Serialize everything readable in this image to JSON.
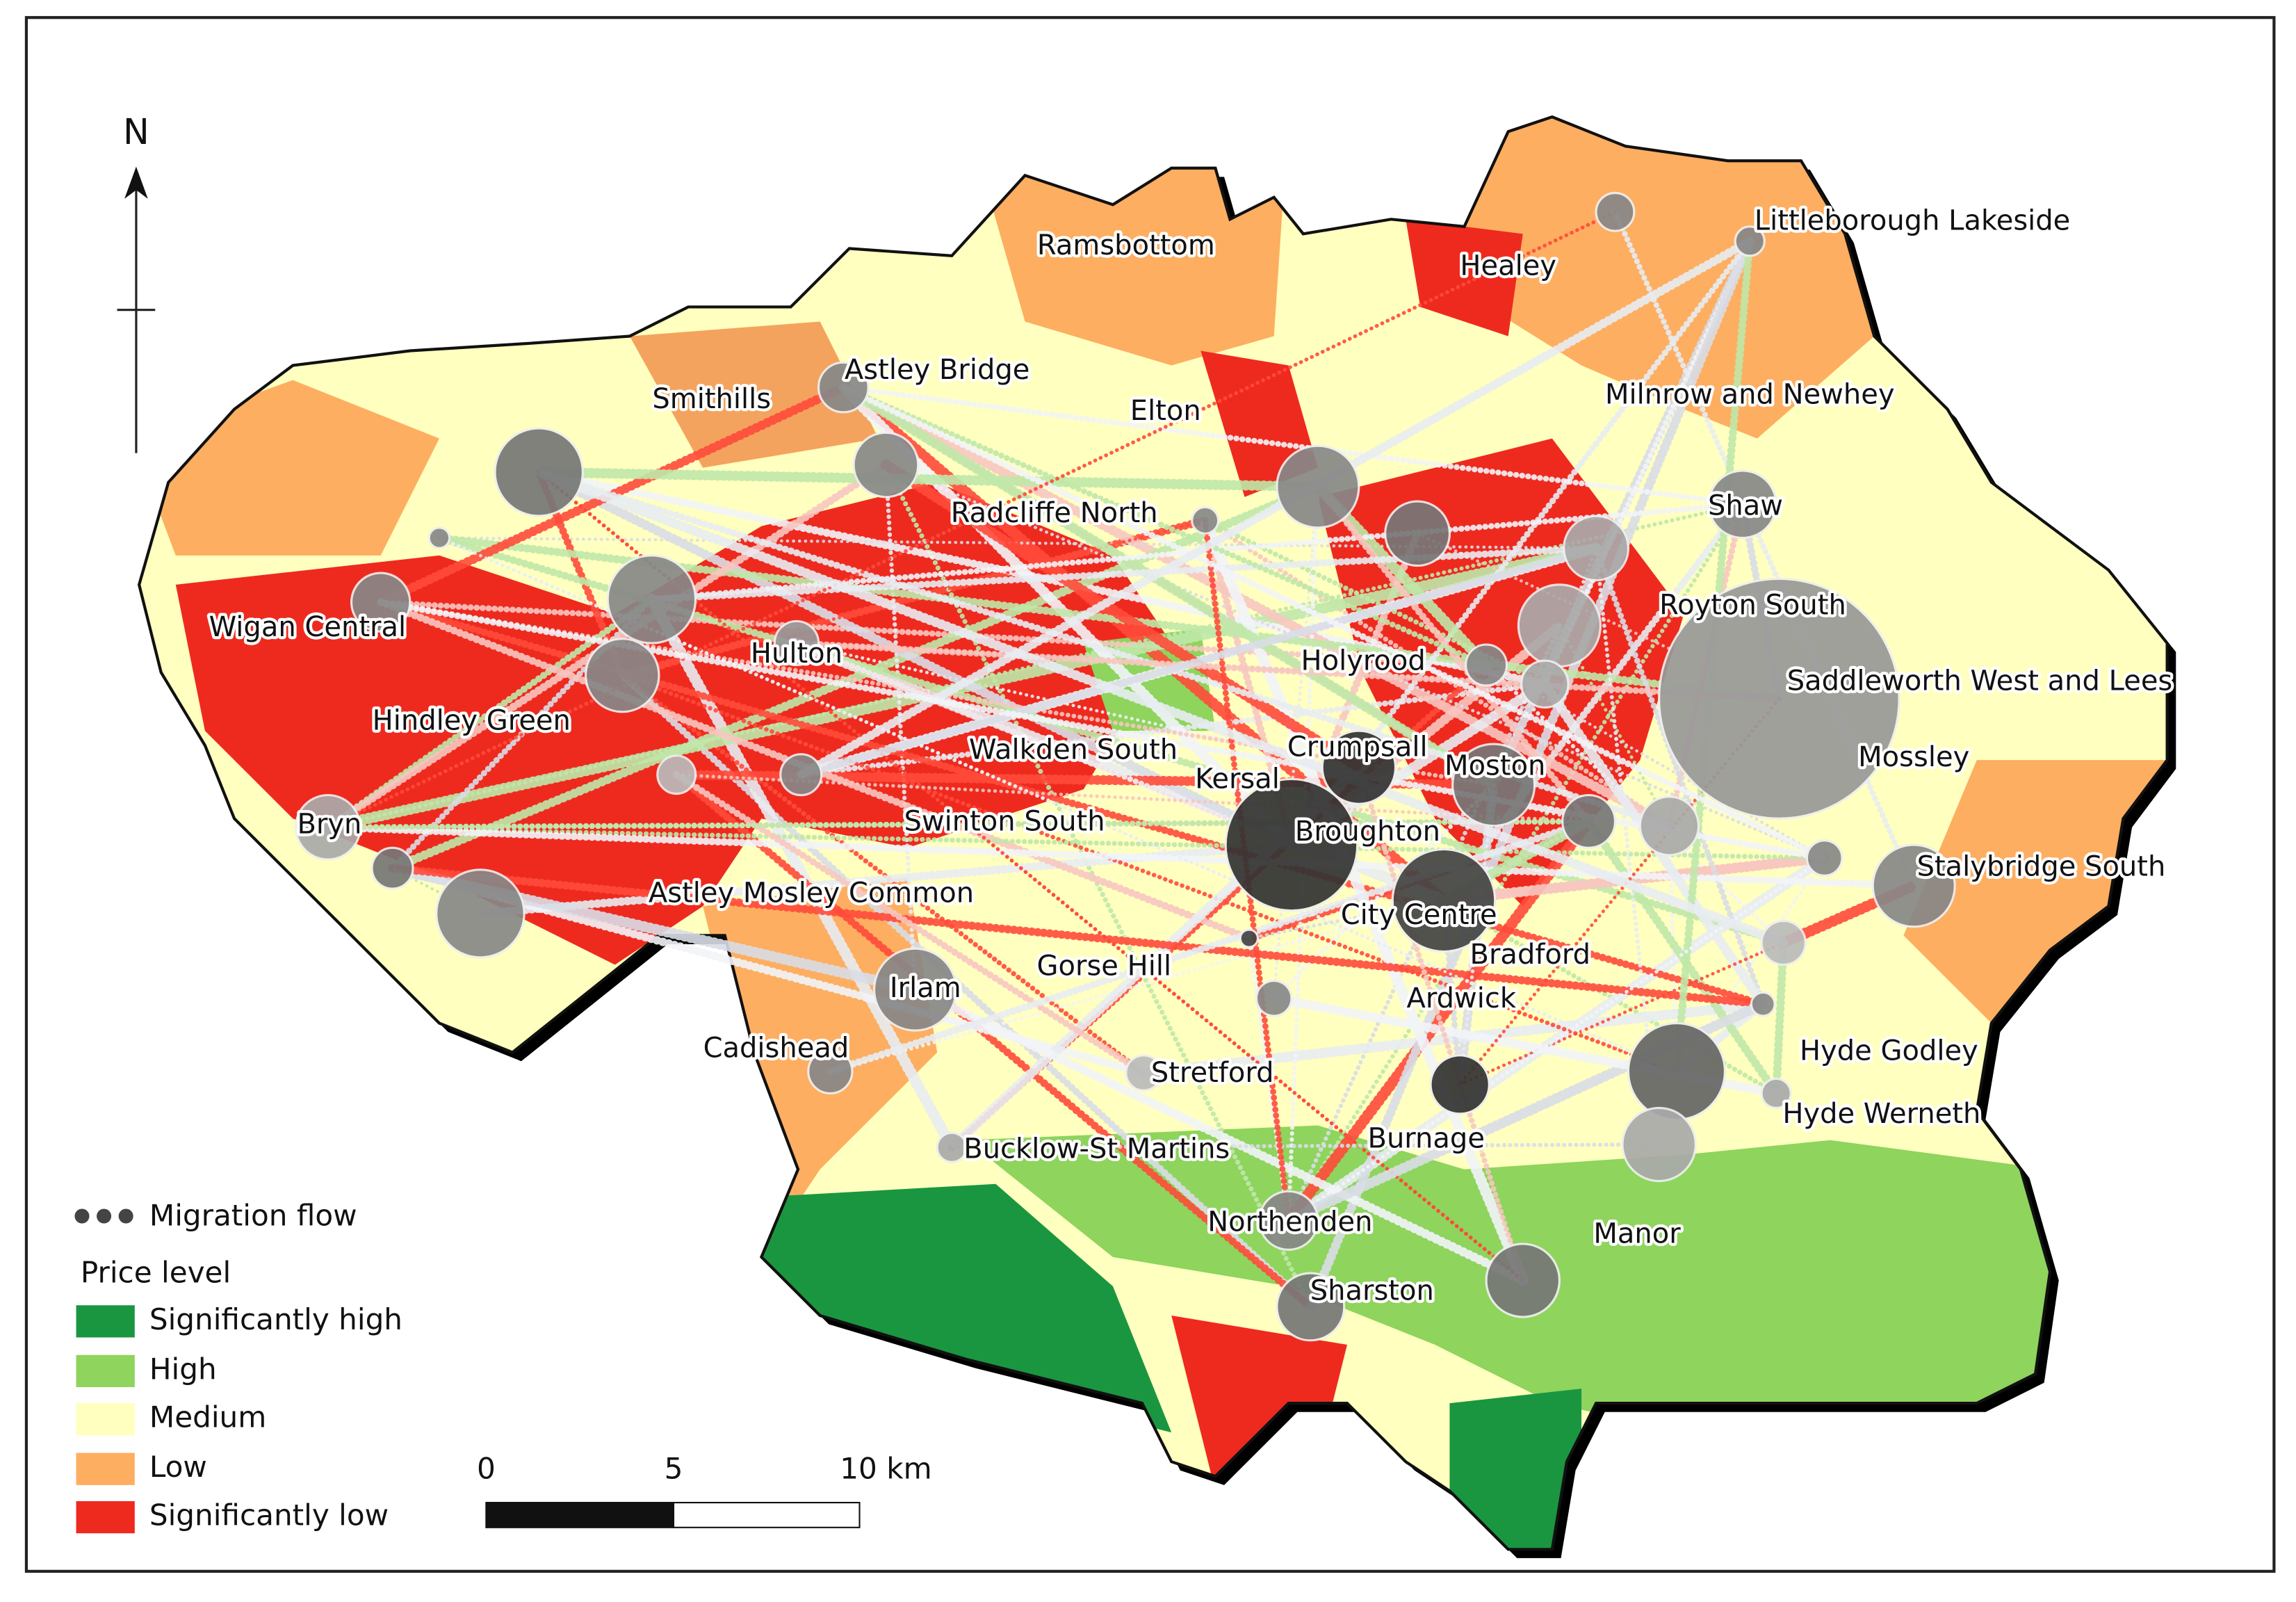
{
  "north": "N",
  "places": [
    "Ramsbottom",
    "Healey",
    "Littleborough Lakeside",
    "Astley Bridge",
    "Smithills",
    "Elton",
    "Milnrow and Newhey",
    "Radcliffe North",
    "Shaw",
    "Royton South",
    "Wigan Central",
    "Hulton",
    "Holyrood",
    "Saddleworth West and Lees",
    "Hindley Green",
    "Walkden South",
    "Crumpsall",
    "Kersal",
    "Moston",
    "Mossley",
    "Bryn",
    "Swinton South",
    "Broughton",
    "Stalybridge South",
    "Astley Mosley Common",
    "City Centre",
    "Bradford",
    "Gorse Hill",
    "Irlam",
    "Ardwick",
    "Cadishead",
    "Hyde Godley",
    "Stretford",
    "Hyde Werneth",
    "Burnage",
    "Bucklow-St Martins",
    "Northenden",
    "Manor",
    "Sharston"
  ],
  "legend": {
    "flow": "Migration flow",
    "price_title": "Price level",
    "items": [
      "Significantly high",
      "High",
      "Medium",
      "Low",
      "Significantly low"
    ]
  },
  "scale": {
    "labels": [
      "0",
      "5",
      "10 km"
    ]
  }
}
